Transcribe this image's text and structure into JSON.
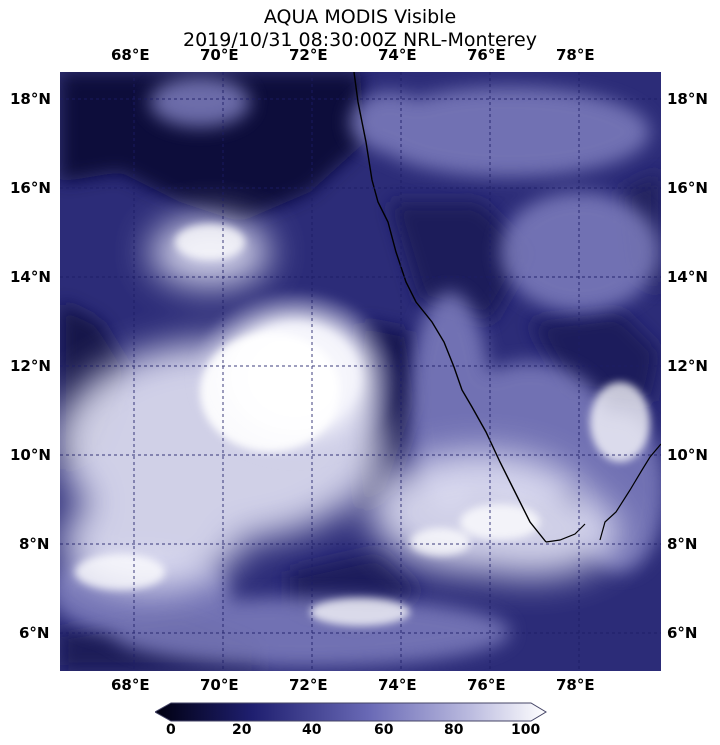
{
  "title": {
    "line1": "AQUA MODIS Visible",
    "line2": "2019/10/31 08:30:00Z NRL-Monterey"
  },
  "map": {
    "lon_ticks": [
      "68°E",
      "70°E",
      "72°E",
      "74°E",
      "76°E",
      "78°E"
    ],
    "lat_ticks": [
      "18°N",
      "16°N",
      "14°N",
      "12°N",
      "10°N",
      "8°N",
      "6°N"
    ],
    "gridlines": "dashed",
    "palette": {
      "dark": "#0b0b35",
      "mid": "#4b4b9b",
      "light": "#ffffff"
    }
  },
  "colorbar": {
    "ticks": [
      "0",
      "20",
      "40",
      "60",
      "80",
      "100"
    ],
    "range": [
      0,
      100
    ]
  }
}
